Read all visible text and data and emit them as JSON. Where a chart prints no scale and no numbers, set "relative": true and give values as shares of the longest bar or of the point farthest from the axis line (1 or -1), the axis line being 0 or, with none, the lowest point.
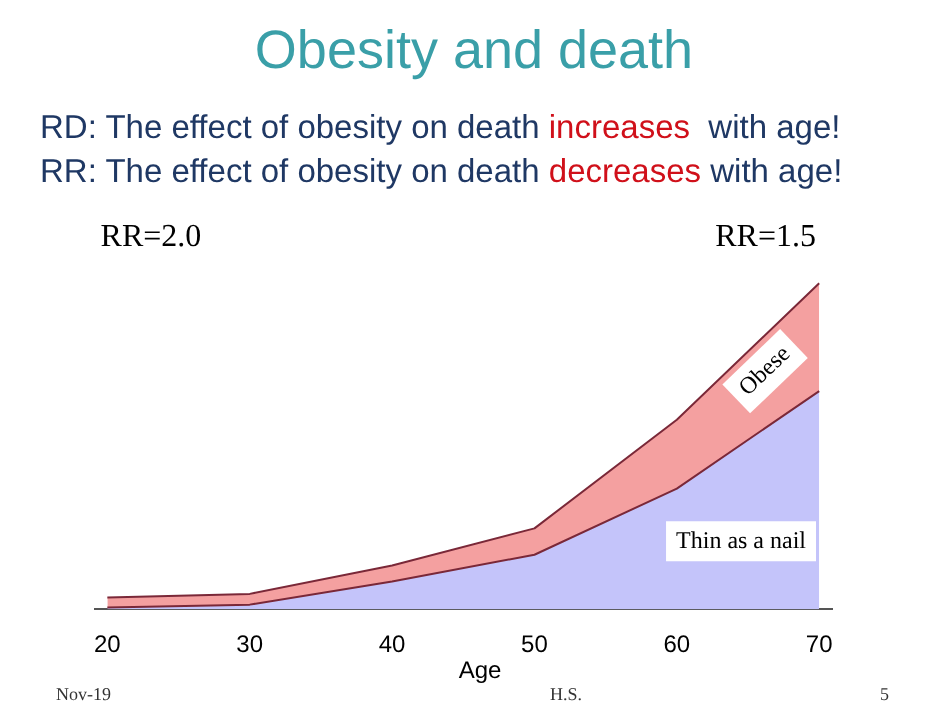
{
  "chart_data": {
    "type": "area",
    "title": "Obesity and death",
    "annotations": [
      "RD: The effect of obesity on death ",
      "increases",
      "  with age!",
      "RR: The effect of obesity on death ",
      "decreases",
      " with age!",
      "RR=2.0",
      "RR=1.5",
      "Nov-19",
      "H.S.",
      "5",
      {
        "text": "Obese",
        "x": 66.2,
        "y": 0.73
      },
      "Thin as a nail"
    ],
    "xlabel": "Age",
    "x": [
      20,
      30,
      40,
      50,
      60,
      70
    ],
    "xlim": [
      19.1,
      70.9
    ],
    "xticks": [
      20,
      30,
      40,
      50,
      60,
      70
    ],
    "relative": true,
    "stacked": true,
    "series": [
      {
        "color": "#c4c4fa",
        "values": [
          0.005,
          0.014,
          0.085,
          0.167,
          0.37,
          0.669
        ]
      },
      {
        "color": "#f4a0a0",
        "values": [
          0.031,
          0.033,
          0.049,
          0.081,
          0.211,
          0.331
        ]
      }
    ]
  }
}
